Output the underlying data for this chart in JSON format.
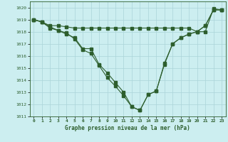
{
  "title": "Graphe pression niveau de la mer (hPa)",
  "bg_color": "#cceef0",
  "grid_color": "#aad4d8",
  "line_color": "#2d5e2d",
  "xlim": [
    -0.5,
    23.5
  ],
  "ylim": [
    1011,
    1020.5
  ],
  "yticks": [
    1011,
    1012,
    1013,
    1014,
    1015,
    1016,
    1017,
    1018,
    1019,
    1020
  ],
  "xticks": [
    0,
    1,
    2,
    3,
    4,
    5,
    6,
    7,
    8,
    9,
    10,
    11,
    12,
    13,
    14,
    15,
    16,
    17,
    18,
    19,
    20,
    21,
    22,
    23
  ],
  "s1_x": [
    0,
    1,
    2,
    3,
    4,
    5,
    6,
    7,
    8,
    9,
    10,
    11,
    12,
    13,
    14,
    15,
    16,
    17,
    18,
    19,
    20,
    21,
    22,
    23
  ],
  "s1_y": [
    1019.0,
    1018.8,
    1018.5,
    1018.5,
    1018.4,
    1018.3,
    1018.3,
    1018.3,
    1018.3,
    1018.3,
    1018.3,
    1018.3,
    1018.3,
    1018.3,
    1018.3,
    1018.3,
    1018.3,
    1018.3,
    1018.3,
    1018.3,
    1018.0,
    1018.0,
    1019.9,
    1019.8
  ],
  "s2_x": [
    0,
    1,
    2,
    3,
    4,
    5,
    6,
    7,
    8,
    9,
    10,
    11,
    12,
    13,
    14,
    15,
    16,
    17,
    18,
    19,
    20,
    21,
    22,
    23
  ],
  "s2_y": [
    1019.0,
    1018.8,
    1018.4,
    1018.1,
    1017.8,
    1017.5,
    1016.6,
    1016.6,
    1015.3,
    1014.6,
    1013.8,
    1013.0,
    1011.8,
    1011.5,
    1012.8,
    1013.1,
    1015.3,
    1017.0,
    1017.5,
    1017.8,
    1018.0,
    1018.5,
    1019.8,
    1019.8
  ],
  "s3_x": [
    0,
    1,
    2,
    3,
    4,
    5,
    6,
    7,
    8,
    9,
    10,
    11,
    12,
    13,
    14,
    15,
    16,
    17,
    18,
    19,
    20,
    21,
    22,
    23
  ],
  "s3_y": [
    1019.0,
    1018.8,
    1018.3,
    1018.1,
    1017.9,
    1017.4,
    1016.5,
    1016.2,
    1015.2,
    1014.2,
    1013.5,
    1012.7,
    1011.8,
    1011.5,
    1012.8,
    1013.1,
    1015.4,
    1017.0,
    1017.5,
    1017.8,
    1018.0,
    1018.5,
    1019.8,
    1019.8
  ]
}
